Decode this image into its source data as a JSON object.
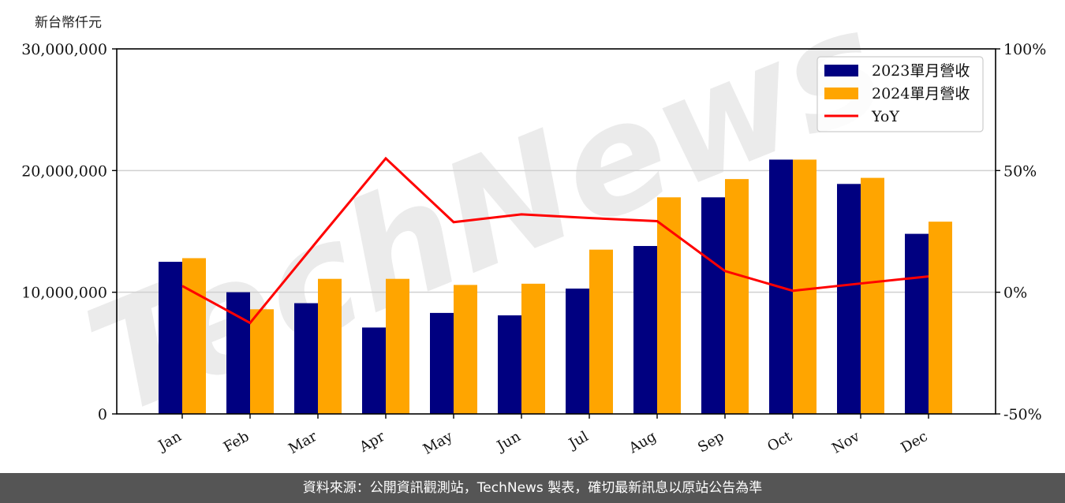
{
  "chart_data": {
    "type": "bar+line",
    "unit_label": "新台幣仟元",
    "categories": [
      "Jan",
      "Feb",
      "Mar",
      "Apr",
      "May",
      "Jun",
      "Jul",
      "Aug",
      "Sep",
      "Oct",
      "Nov",
      "Dec"
    ],
    "series": [
      {
        "name": "2023單月營收",
        "type": "bar",
        "color": "#000080",
        "axis": "left",
        "values": [
          12500000,
          10000000,
          9100000,
          7100000,
          8300000,
          8100000,
          10300000,
          13800000,
          17800000,
          20900000,
          18900000,
          14800000
        ]
      },
      {
        "name": "2024單月營收",
        "type": "bar",
        "color": "#FFA500",
        "axis": "left",
        "values": [
          12800000,
          8600000,
          11100000,
          11100000,
          10600000,
          10700000,
          13500000,
          17800000,
          19300000,
          20900000,
          19400000,
          15800000
        ]
      },
      {
        "name": "YoY",
        "type": "line",
        "color": "#FF0000",
        "axis": "right",
        "values": [
          2.6,
          -12.6,
          21.4,
          55.0,
          28.8,
          32.0,
          30.5,
          29.2,
          8.7,
          0.6,
          3.6,
          6.5
        ]
      }
    ],
    "left_axis": {
      "ylim": [
        0,
        30000000
      ],
      "ticks": [
        0,
        10000000,
        20000000,
        30000000
      ],
      "tick_labels": [
        "0",
        "10,000,000",
        "20,000,000",
        "30,000,000"
      ]
    },
    "right_axis": {
      "ylim": [
        -50,
        100
      ],
      "ticks": [
        -50,
        0,
        50,
        100
      ],
      "tick_labels": [
        "-50%",
        "0%",
        "50%",
        "100%"
      ]
    },
    "grid": "horizontal",
    "legend_position": "upper right",
    "watermark": "TechNews"
  },
  "footer": {
    "text": "資料來源：公開資訊觀測站，TechNews 製表，確切最新訊息以原站公告為準"
  }
}
